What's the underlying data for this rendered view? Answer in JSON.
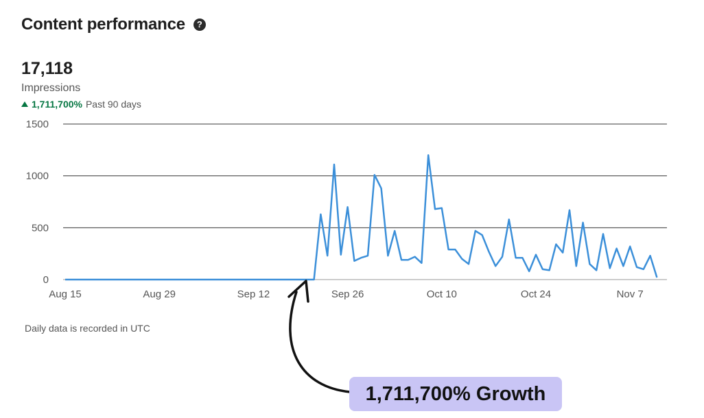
{
  "header": {
    "title": "Content performance"
  },
  "metric": {
    "value": "17,118",
    "label": "Impressions",
    "change": "1,711,700%",
    "period": "Past 90 days"
  },
  "footnote": "Daily data is recorded in UTC",
  "annotation": {
    "text": "1,711,700% Growth"
  },
  "colors": {
    "line": "#3b8fd9",
    "positive": "#057642",
    "callout_bg": "#c9c5f5"
  },
  "chart_data": {
    "type": "line",
    "xlabel": "",
    "ylabel": "",
    "ylim": [
      0,
      1500
    ],
    "y_ticks": [
      0,
      500,
      1000,
      1500
    ],
    "y_tick_labels": [
      "0",
      "500",
      "1000",
      "1500"
    ],
    "x_tick_labels": [
      "Aug 15",
      "Aug 29",
      "Sep 12",
      "Sep 26",
      "Oct 10",
      "Oct 24",
      "Nov 7"
    ],
    "x_tick_days": [
      0,
      14,
      28,
      42,
      56,
      70,
      84
    ],
    "grid": true,
    "legend": "none",
    "series": [
      {
        "values": [
          0,
          0,
          0,
          0,
          0,
          0,
          0,
          0,
          0,
          0,
          0,
          0,
          0,
          0,
          0,
          0,
          0,
          0,
          0,
          0,
          0,
          0,
          0,
          0,
          0,
          0,
          0,
          0,
          0,
          0,
          0,
          0,
          0,
          0,
          0,
          0,
          0,
          0,
          630,
          230,
          1110,
          240,
          700,
          180,
          210,
          230,
          1010,
          880,
          230,
          470,
          190,
          190,
          220,
          160,
          1200,
          680,
          690,
          290,
          290,
          200,
          150,
          470,
          430,
          270,
          130,
          220,
          580,
          210,
          210,
          80,
          240,
          100,
          90,
          340,
          260,
          670,
          130,
          550,
          150,
          90,
          440,
          110,
          300,
          130,
          320,
          120,
          100,
          230,
          20
        ]
      }
    ]
  }
}
